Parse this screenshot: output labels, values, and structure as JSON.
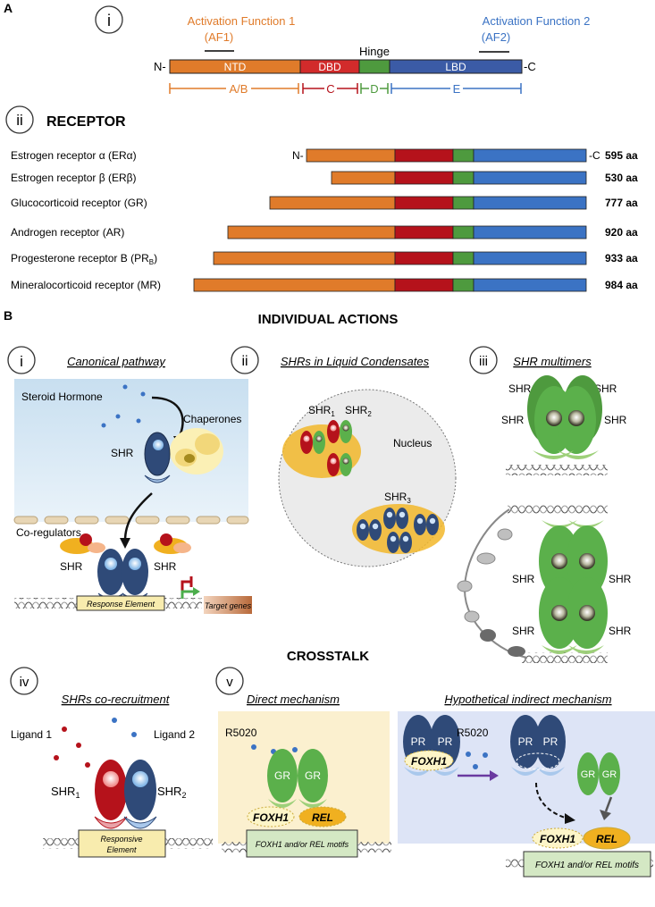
{
  "panel_a": {
    "letter": "A",
    "roman_i": "i",
    "roman_ii": "ii",
    "af1_title": "Activation Function 1",
    "af1_abbr": "(AF1)",
    "af2_title": "Activation Function 2",
    "af2_abbr": "(AF2)",
    "hinge": "Hinge",
    "n_term": "N-",
    "c_term": "-C",
    "domains": {
      "ntd": "NTD",
      "dbd": "DBD",
      "lbd": "LBD"
    },
    "regions": {
      "ab": "A/B",
      "c": "C",
      "d": "D",
      "e": "E"
    },
    "receptor_heading": "RECEPTOR",
    "receptors": [
      {
        "name": "Estrogen receptor α (ERα)",
        "length": "595 aa"
      },
      {
        "name": "Estrogen receptor β (ERβ)",
        "length": "530 aa"
      },
      {
        "name": "Glucocorticoid receptor (GR)",
        "length": "777 aa"
      },
      {
        "name": "Androgen receptor (AR)",
        "length": "920 aa"
      },
      {
        "name": "Progesterone receptor B (PR",
        "sub": "B",
        "suffix": ")",
        "length": "933 aa"
      },
      {
        "name": "Mineralocorticoid receptor (MR)",
        "length": "984 aa"
      }
    ]
  },
  "panel_b": {
    "letter": "B",
    "heading": "INDIVIDUAL ACTIONS",
    "crosstalk": "CROSSTALK",
    "i": {
      "roman": "i",
      "title": "Canonical pathway",
      "steroid": "Steroid Hormone",
      "chaperones": "Chaperones",
      "shr": "SHR",
      "coregulators": "Co-regulators",
      "response_element": "Response Element",
      "target_genes": "Target genes"
    },
    "ii": {
      "roman": "ii",
      "title": "SHRs in Liquid Condensates",
      "shr1": "SHR",
      "shr1_sub": "1",
      "shr2": "SHR",
      "shr2_sub": "2",
      "shr3": "SHR",
      "shr3_sub": "3",
      "nucleus": "Nucleus"
    },
    "iii": {
      "roman": "iii",
      "title": "SHR multimers",
      "shr": "SHR"
    },
    "iv": {
      "roman": "iv",
      "title": "SHRs co-recruitment",
      "ligand1": "Ligand 1",
      "ligand2": "Ligand 2",
      "shr": "SHR",
      "sub1": "1",
      "sub2": "2",
      "responsive": "Responsive",
      "element": "Element"
    },
    "v": {
      "roman": "v",
      "direct_title": "Direct mechanism",
      "indirect_title": "Hypothetical indirect mechanism",
      "r5020": "R5020",
      "gr": "GR",
      "pr": "PR",
      "foxh1": "FOXH1",
      "rel": "REL",
      "motifs": "FOXH1 and/or REL motifs"
    }
  },
  "colors": {
    "orange": "#e07b2a",
    "red": "#b5121b",
    "green": "#4e9a3e",
    "blue": "#3b73c4",
    "navy": "#2f4a78",
    "receptor_green": "#5bb04b",
    "cream": "#f8f0c0"
  }
}
